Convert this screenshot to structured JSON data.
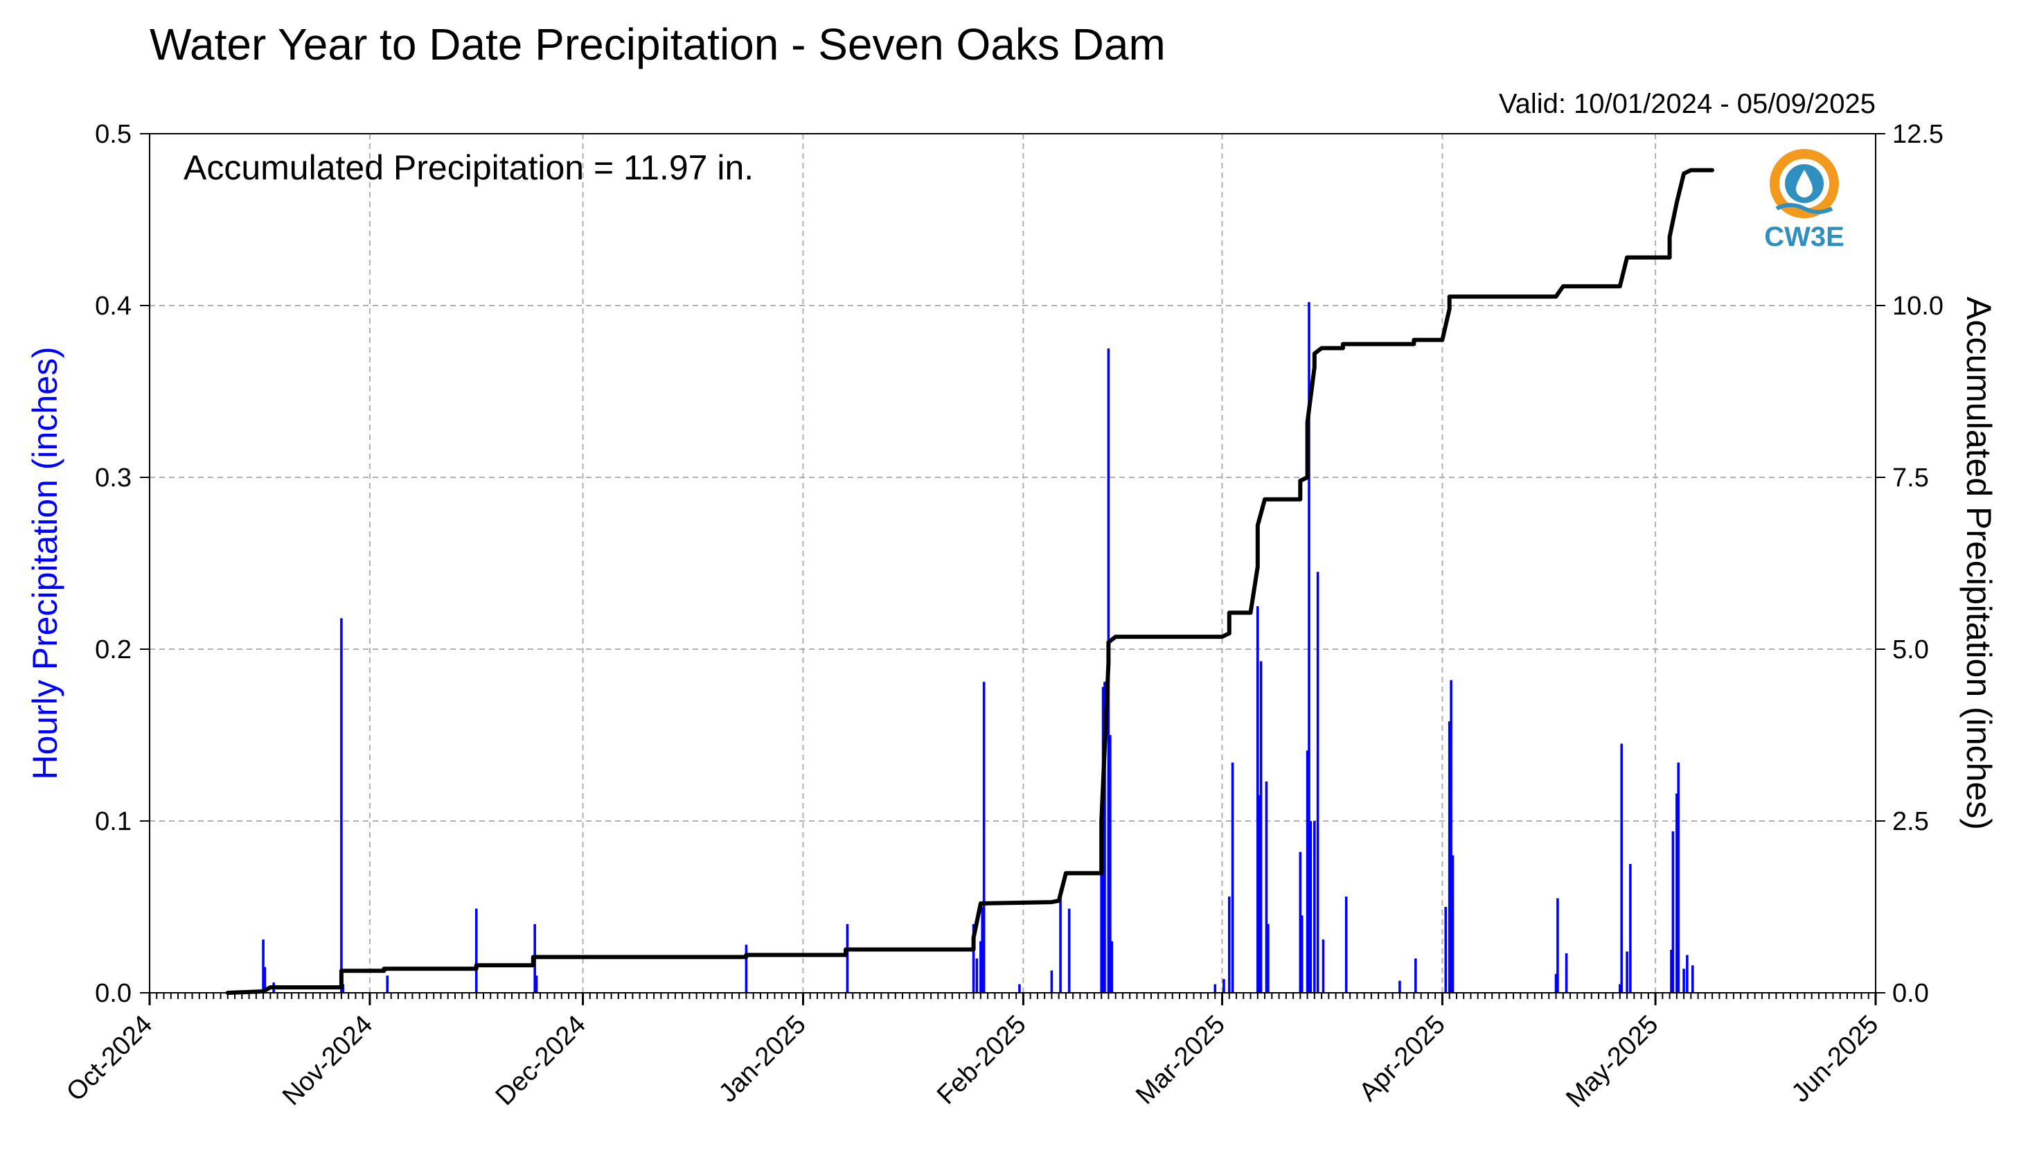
{
  "chart_data": {
    "type": "bar+line",
    "title": "Water Year to Date Precipitation - Seven Oaks Dam",
    "subtitle": "Valid: 10/01/2024 - 05/09/2025",
    "annotation": "Accumulated Precipitation = 11.97 in.",
    "logo_text": "CW3E",
    "ylabel_left": "Hourly Precipitation (inches)",
    "ylabel_right": "Accumulated Precipitation (inches)",
    "x_start": "2024-10-01",
    "x_end": "2025-06-01",
    "x_ticks": [
      {
        "date": "2024-10-01",
        "label": "Oct-2024"
      },
      {
        "date": "2024-11-01",
        "label": "Nov-2024"
      },
      {
        "date": "2024-12-01",
        "label": "Dec-2024"
      },
      {
        "date": "2025-01-01",
        "label": "Jan-2025"
      },
      {
        "date": "2025-02-01",
        "label": "Feb-2025"
      },
      {
        "date": "2025-03-01",
        "label": "Mar-2025"
      },
      {
        "date": "2025-04-01",
        "label": "Apr-2025"
      },
      {
        "date": "2025-05-01",
        "label": "May-2025"
      },
      {
        "date": "2025-06-01",
        "label": "Jun-2025"
      }
    ],
    "ylim_left": [
      0,
      0.5
    ],
    "yticks_left": [
      "0.0",
      "0.1",
      "0.2",
      "0.3",
      "0.4",
      "0.5"
    ],
    "ylim_right": [
      0,
      12.5
    ],
    "yticks_right": [
      "0.0",
      "2.5",
      "5.0",
      "7.5",
      "10.0",
      "12.5"
    ],
    "grid": true,
    "colors": {
      "hourly": "#0000ff",
      "accumulated": "#000000",
      "grid": "#b0b0b0"
    },
    "hourly_series": {
      "name": "Hourly Precipitation",
      "points": [
        [
          "2024-10-17",
          0.031
        ],
        [
          "2024-10-17",
          0.015
        ],
        [
          "2024-10-18",
          0.006
        ],
        [
          "2024-10-28",
          0.218
        ],
        [
          "2024-10-28",
          0.005
        ],
        [
          "2024-11-03",
          0.01
        ],
        [
          "2024-11-16",
          0.049
        ],
        [
          "2024-11-24",
          0.04
        ],
        [
          "2024-11-24",
          0.01
        ],
        [
          "2024-12-24",
          0.028
        ],
        [
          "2025-01-07",
          0.04
        ],
        [
          "2025-01-25",
          0.02
        ],
        [
          "2025-01-25",
          0.04
        ],
        [
          "2025-01-26",
          0.05
        ],
        [
          "2025-01-26",
          0.181
        ],
        [
          "2025-01-26",
          0.03
        ],
        [
          "2025-01-26",
          0.018
        ],
        [
          "2025-01-31",
          0.005
        ],
        [
          "2025-02-05",
          0.013
        ],
        [
          "2025-02-06",
          0.06
        ],
        [
          "2025-02-07",
          0.049
        ],
        [
          "2025-02-12",
          0.1
        ],
        [
          "2025-02-12",
          0.178
        ],
        [
          "2025-02-12",
          0.181
        ],
        [
          "2025-02-13",
          0.375
        ],
        [
          "2025-02-13",
          0.15
        ],
        [
          "2025-02-13",
          0.03
        ],
        [
          "2025-02-28",
          0.005
        ],
        [
          "2025-03-01",
          0.008
        ],
        [
          "2025-03-02",
          0.134
        ],
        [
          "2025-03-02",
          0.056
        ],
        [
          "2025-03-06",
          0.115
        ],
        [
          "2025-03-06",
          0.193
        ],
        [
          "2025-03-06",
          0.225
        ],
        [
          "2025-03-07",
          0.123
        ],
        [
          "2025-03-07",
          0.04
        ],
        [
          "2025-03-12",
          0.082
        ],
        [
          "2025-03-12",
          0.045
        ],
        [
          "2025-03-13",
          0.1
        ],
        [
          "2025-03-13",
          0.141
        ],
        [
          "2025-03-13",
          0.402
        ],
        [
          "2025-03-14",
          0.245
        ],
        [
          "2025-03-14",
          0.1
        ],
        [
          "2025-03-15",
          0.031
        ],
        [
          "2025-03-18",
          0.056
        ],
        [
          "2025-03-26",
          0.007
        ],
        [
          "2025-03-28",
          0.02
        ],
        [
          "2025-04-01",
          0.05
        ],
        [
          "2025-04-02",
          0.158
        ],
        [
          "2025-04-02",
          0.182
        ],
        [
          "2025-04-02",
          0.08
        ],
        [
          "2025-04-17",
          0.011
        ],
        [
          "2025-04-17",
          0.055
        ],
        [
          "2025-04-18",
          0.023
        ],
        [
          "2025-04-26",
          0.005
        ],
        [
          "2025-04-26",
          0.145
        ],
        [
          "2025-04-27",
          0.075
        ],
        [
          "2025-04-27",
          0.024
        ],
        [
          "2025-05-03",
          0.025
        ],
        [
          "2025-05-03",
          0.094
        ],
        [
          "2025-05-04",
          0.116
        ],
        [
          "2025-05-04",
          0.134
        ],
        [
          "2025-05-05",
          0.022
        ],
        [
          "2025-05-05",
          0.014
        ],
        [
          "2025-05-06",
          0.016
        ]
      ]
    },
    "accumulated_series": {
      "name": "Accumulated Precipitation",
      "points": [
        [
          "2024-10-12",
          0.0
        ],
        [
          "2024-10-17",
          0.02
        ],
        [
          "2024-10-18",
          0.08
        ],
        [
          "2024-10-28",
          0.08
        ],
        [
          "2024-10-28",
          0.32
        ],
        [
          "2024-11-03",
          0.32
        ],
        [
          "2024-11-03",
          0.35
        ],
        [
          "2024-11-16",
          0.35
        ],
        [
          "2024-11-16",
          0.4
        ],
        [
          "2024-11-24",
          0.4
        ],
        [
          "2024-11-24",
          0.52
        ],
        [
          "2024-12-24",
          0.52
        ],
        [
          "2024-12-24",
          0.55
        ],
        [
          "2025-01-07",
          0.55
        ],
        [
          "2025-01-07",
          0.63
        ],
        [
          "2025-01-25",
          0.63
        ],
        [
          "2025-01-25",
          0.8
        ],
        [
          "2025-01-26",
          1.3
        ],
        [
          "2025-02-05",
          1.32
        ],
        [
          "2025-02-06",
          1.34
        ],
        [
          "2025-02-07",
          1.74
        ],
        [
          "2025-02-12",
          1.74
        ],
        [
          "2025-02-12",
          2.5
        ],
        [
          "2025-02-13",
          4.8
        ],
        [
          "2025-02-13",
          5.1
        ],
        [
          "2025-02-14",
          5.18
        ],
        [
          "2025-03-01",
          5.18
        ],
        [
          "2025-03-02",
          5.23
        ],
        [
          "2025-03-02",
          5.53
        ],
        [
          "2025-03-05",
          5.53
        ],
        [
          "2025-03-06",
          6.2
        ],
        [
          "2025-03-06",
          6.8
        ],
        [
          "2025-03-07",
          7.18
        ],
        [
          "2025-03-12",
          7.18
        ],
        [
          "2025-03-12",
          7.45
        ],
        [
          "2025-03-13",
          7.5
        ],
        [
          "2025-03-13",
          8.3
        ],
        [
          "2025-03-14",
          9.1
        ],
        [
          "2025-03-14",
          9.3
        ],
        [
          "2025-03-15",
          9.38
        ],
        [
          "2025-03-18",
          9.38
        ],
        [
          "2025-03-18",
          9.44
        ],
        [
          "2025-03-28",
          9.44
        ],
        [
          "2025-03-28",
          9.5
        ],
        [
          "2025-04-01",
          9.5
        ],
        [
          "2025-04-02",
          9.95
        ],
        [
          "2025-04-02",
          10.13
        ],
        [
          "2025-04-17",
          10.13
        ],
        [
          "2025-04-18",
          10.28
        ],
        [
          "2025-04-26",
          10.28
        ],
        [
          "2025-04-27",
          10.7
        ],
        [
          "2025-05-03",
          10.7
        ],
        [
          "2025-05-03",
          11.0
        ],
        [
          "2025-05-04",
          11.5
        ],
        [
          "2025-05-05",
          11.92
        ],
        [
          "2025-05-06",
          11.97
        ],
        [
          "2025-05-09",
          11.97
        ]
      ]
    }
  }
}
